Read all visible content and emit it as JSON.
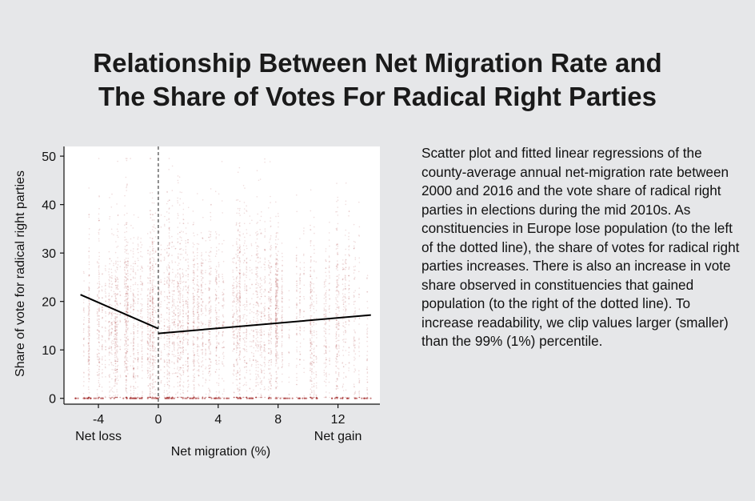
{
  "page": {
    "title_line1": "Relationship Between Net Migration Rate and",
    "title_line2": "The Share of Votes For Radical Right Parties",
    "description": "Scatter plot and fitted linear regressions of the county-average annual net-migration rate between 2000 and 2016 and the vote share of radical right parties in elections during the mid 2010s. As constituencies in Europe lose population (to the left of the dotted line), the share of votes for radical right parties increases. There is also an increase in vote share observed in constituencies that gained population (to the right of the dotted line). To increase readability, we clip values larger (smaller) than the 99% (1%) percentile."
  },
  "chart_data": {
    "type": "scatter",
    "title": "",
    "xlabel": "Net migration (%)",
    "ylabel": "Share of vote for radical right parties",
    "xlim": [
      -6.3,
      14.8
    ],
    "ylim": [
      -1.2,
      52
    ],
    "xticks": [
      -4,
      0,
      4,
      8,
      12
    ],
    "yticks": [
      0,
      10,
      20,
      30,
      40,
      50
    ],
    "x_annotations": [
      {
        "x": -4,
        "text": "Net loss"
      },
      {
        "x": 12,
        "text": "Net gain"
      }
    ],
    "reference_line": {
      "x": 0,
      "style": "dashed"
    },
    "point_color": "#a32a2a",
    "line_color": "#000000",
    "grid": false,
    "regression_lines": [
      {
        "x": [
          -5.2,
          0
        ],
        "y": [
          21.4,
          14.4
        ]
      },
      {
        "x": [
          0,
          14.2
        ],
        "y": [
          13.4,
          17.2
        ]
      }
    ]
  }
}
